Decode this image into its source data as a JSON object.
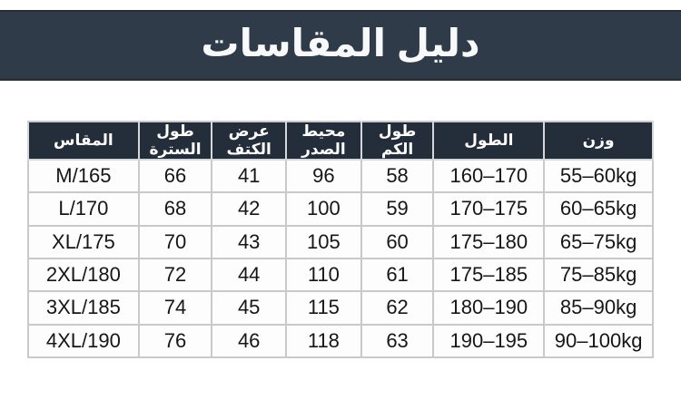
{
  "banner": {
    "title": "دليل المقاسات",
    "background": "#2f3b49",
    "edge_color": "#242d38",
    "text_color": "#f8f9fa"
  },
  "size_table": {
    "header_background": "#242e3a",
    "header_text_color": "#ffffff",
    "border_color": "#c9c9c9",
    "body_text_color": "#161616",
    "columns": [
      "المقاس",
      "طول السترة",
      "عرض الكتف",
      "محيط الصدر",
      "طول الكم",
      "الطول",
      "وزن"
    ],
    "rows": [
      [
        "M/165",
        "66",
        "41",
        "96",
        "58",
        "160–170",
        "55–60kg"
      ],
      [
        "L/170",
        "68",
        "42",
        "100",
        "59",
        "170–175",
        "60–65kg"
      ],
      [
        "XL/175",
        "70",
        "43",
        "105",
        "60",
        "175–180",
        "65–75kg"
      ],
      [
        "2XL/180",
        "72",
        "44",
        "110",
        "61",
        "175–185",
        "75–85kg"
      ],
      [
        "3XL/185",
        "74",
        "45",
        "115",
        "62",
        "180–190",
        "85–90kg"
      ],
      [
        "4XL/190",
        "76",
        "46",
        "118",
        "63",
        "190–195",
        "90–100kg"
      ]
    ]
  }
}
